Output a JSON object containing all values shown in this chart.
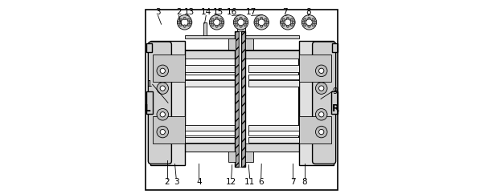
{
  "bg_color": "#ffffff",
  "line_color": "#000000",
  "figsize": [
    6.02,
    2.42
  ],
  "dpi": 100,
  "label_fontsize": 7.5,
  "bold_fontsize": 8.5
}
